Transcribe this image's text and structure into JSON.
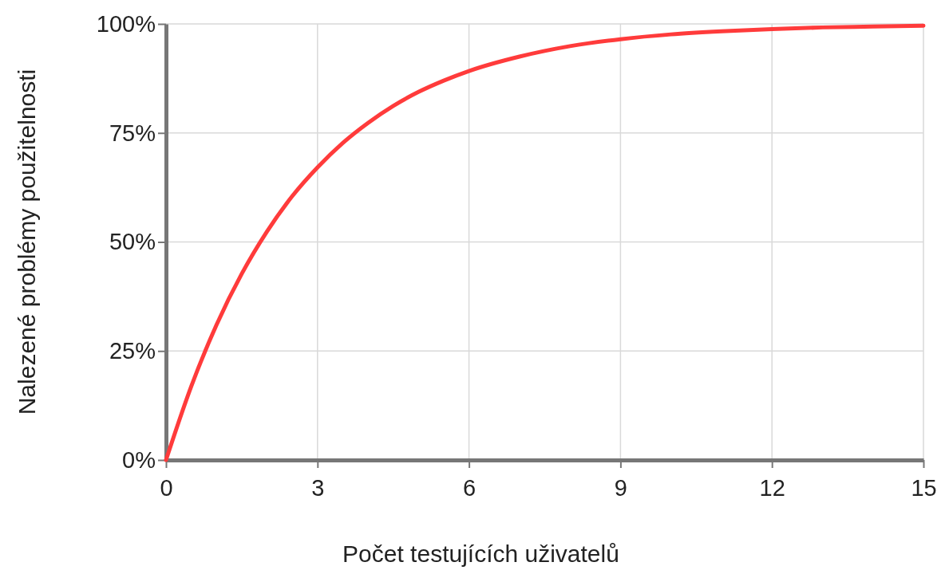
{
  "chart_data": {
    "type": "line",
    "xlabel": "Počet testujících uživatelů",
    "ylabel": "Nalezené problémy použitelnosti",
    "x": [
      0,
      0.5,
      1,
      1.5,
      2,
      2.5,
      3,
      3.5,
      4,
      4.5,
      5,
      5.5,
      6,
      7,
      8,
      9,
      10,
      11,
      12,
      13,
      14,
      15
    ],
    "series": [
      {
        "color": "#ff3b3b",
        "values": [
          0,
          16.9,
          31,
          42.7,
          52.4,
          60.5,
          67.1,
          72.7,
          77.3,
          81.2,
          84.4,
          87,
          89.2,
          92.5,
          94.9,
          96.5,
          97.6,
          98.3,
          98.8,
          99.2,
          99.4,
          99.6
        ]
      }
    ],
    "xlim": [
      0,
      15
    ],
    "xticks": [
      0,
      3,
      6,
      9,
      12,
      15
    ],
    "ylim": [
      0,
      100
    ],
    "yticks": [
      {
        "value": 0,
        "label": "0%"
      },
      {
        "value": 25,
        "label": "25%"
      },
      {
        "value": 50,
        "label": "50%"
      },
      {
        "value": 75,
        "label": "75%"
      },
      {
        "value": 100,
        "label": "100%"
      }
    ],
    "grid": true,
    "marker": "none",
    "line_style": "solid"
  }
}
